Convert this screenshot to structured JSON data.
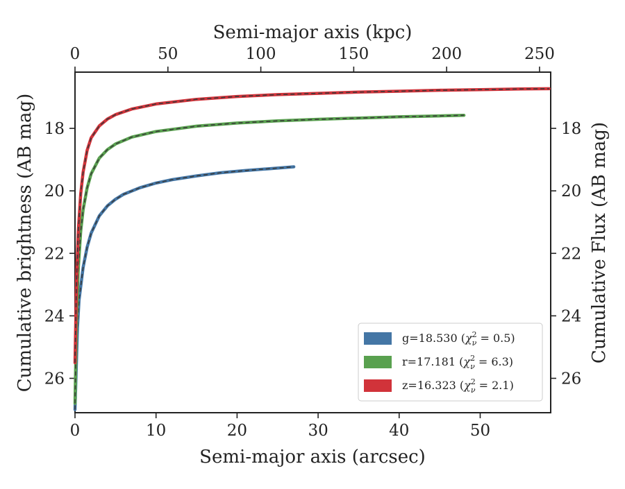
{
  "chart_data": {
    "type": "line",
    "xlabel": "Semi-major axis (arcsec)",
    "ylabel": "Cumulative brightness (AB mag)",
    "top_xlabel": "Semi-major axis (kpc)",
    "right_ylabel": "Cumulative Flux (AB mag)",
    "xlim": [
      0,
      58.7
    ],
    "ylim": [
      27.1,
      16.2
    ],
    "y_inverted": true,
    "top_xlim": [
      0,
      256
    ],
    "x_ticks": [
      "0",
      "10",
      "20",
      "30",
      "40",
      "50"
    ],
    "y_ticks": [
      "18",
      "20",
      "22",
      "24",
      "26"
    ],
    "top_x_ticks": [
      "0",
      "50",
      "100",
      "150",
      "200",
      "250"
    ],
    "right_y_ticks": [
      "18",
      "20",
      "22",
      "24",
      "26"
    ],
    "legend_position": "lower right",
    "grid": false,
    "series": [
      {
        "name": "g=18.530 (χ²ν = 0.5)",
        "label_main": "g=18.530 (",
        "label_chi": "χ",
        "label_sup": "2",
        "label_sub": "ν",
        "label_rest": " = 0.5)",
        "color": "#4476a5",
        "x": [
          0,
          0.3,
          0.5,
          1,
          1.5,
          2,
          3,
          4,
          5,
          6,
          8,
          10,
          12,
          15,
          18,
          21,
          24,
          27
        ],
        "y": [
          27.0,
          24.4,
          23.5,
          22.45,
          21.8,
          21.35,
          20.8,
          20.48,
          20.27,
          20.11,
          19.9,
          19.75,
          19.64,
          19.52,
          19.42,
          19.35,
          19.29,
          19.23
        ]
      },
      {
        "name": "r=17.181 (χ²ν = 6.3)",
        "label_main": "r=17.181 (",
        "label_chi": "χ",
        "label_sup": "2",
        "label_sub": "ν",
        "label_rest": " = 6.3)",
        "color": "#59a14f",
        "x": [
          0,
          0.2,
          0.4,
          0.7,
          1,
          1.5,
          2,
          3,
          4,
          5,
          7,
          10,
          15,
          20,
          25,
          30,
          35,
          40,
          45,
          48
        ],
        "y": [
          26.8,
          24.0,
          22.5,
          21.3,
          20.6,
          19.9,
          19.45,
          18.95,
          18.68,
          18.5,
          18.28,
          18.1,
          17.93,
          17.83,
          17.76,
          17.71,
          17.67,
          17.63,
          17.6,
          17.58
        ]
      },
      {
        "name": "z=16.323 (χ²ν = 2.1)",
        "label_main": "z=16.323 (",
        "label_chi": "χ",
        "label_sup": "2",
        "label_sub": "ν",
        "label_rest": " = 2.1)",
        "color": "#d1333a",
        "x": [
          0,
          0.2,
          0.4,
          0.7,
          1,
          1.5,
          2,
          3,
          4,
          5,
          7,
          10,
          15,
          20,
          25,
          30,
          35,
          40,
          45,
          50,
          55,
          58.5
        ],
        "y": [
          25.5,
          22.8,
          21.3,
          20.1,
          19.4,
          18.7,
          18.3,
          17.92,
          17.7,
          17.56,
          17.38,
          17.22,
          17.07,
          16.98,
          16.92,
          16.88,
          16.84,
          16.81,
          16.78,
          16.76,
          16.74,
          16.73
        ]
      }
    ]
  }
}
